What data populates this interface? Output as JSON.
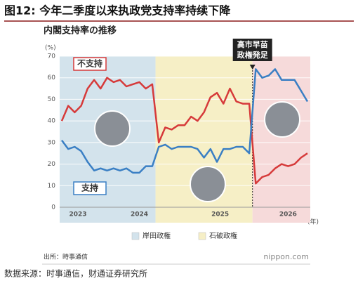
{
  "header": {
    "title": "图12: 今年二季度以来执政党支持率持续下降"
  },
  "chart_data": {
    "type": "line",
    "title": "内閣支持率の推移",
    "y_unit": "(%)",
    "x_unit": "(年)",
    "categories": [
      null,
      null,
      null,
      null,
      null,
      null,
      null,
      null,
      null,
      null,
      null,
      null,
      null,
      null,
      null,
      null,
      null,
      null,
      null,
      null,
      null,
      null,
      null,
      null,
      null,
      null,
      null,
      null,
      null,
      null,
      null,
      null,
      null,
      null,
      null,
      null,
      null,
      null,
      null
    ],
    "series": [
      {
        "name": "不支持",
        "color": "#d63a3a",
        "values": [
          40,
          47,
          44,
          47,
          55,
          59,
          55,
          60,
          58,
          59,
          56,
          57,
          58,
          55,
          57,
          30,
          37,
          36,
          38,
          38,
          42,
          40,
          44,
          51,
          53,
          48,
          55,
          49,
          48,
          48,
          11,
          14,
          15,
          18,
          20,
          19,
          20,
          23,
          25
        ]
      },
      {
        "name": "支持",
        "color": "#3a7fc4",
        "values": [
          31,
          27,
          28,
          26,
          21,
          17,
          18,
          17,
          18,
          17,
          18,
          16,
          16,
          19,
          19,
          28,
          29,
          27,
          28,
          28,
          28,
          27,
          23,
          27,
          21,
          27,
          27,
          28,
          28,
          25,
          64,
          60,
          61,
          64,
          59,
          59,
          59,
          54,
          49
        ]
      }
    ],
    "regions": [
      {
        "name": "岸田政権",
        "color": "#d3e3ec",
        "from": 0,
        "to": 14
      },
      {
        "name": "石破政権",
        "color": "#f6efc6",
        "from": 15,
        "to": 29
      },
      {
        "color": "#f6dada",
        "from": 30,
        "to": 38
      }
    ],
    "annotation": {
      "lines": [
        "高市早苗",
        "政権発足"
      ],
      "at": 30
    },
    "xticks": [
      {
        "value": 2.5,
        "label": "2023"
      },
      {
        "value": 12,
        "label": "2024"
      },
      {
        "value": 24.5,
        "label": "2025"
      },
      {
        "value": 35,
        "label": "2026"
      }
    ],
    "ylim": [
      0,
      70
    ],
    "yticks": [
      0,
      10,
      20,
      30,
      40,
      50,
      60,
      70
    ],
    "grid": true,
    "source": "出所：時事通信",
    "brand": "nippon.com"
  },
  "footer": {
    "source": "数据来源：时事通信，财通证券研究所"
  }
}
